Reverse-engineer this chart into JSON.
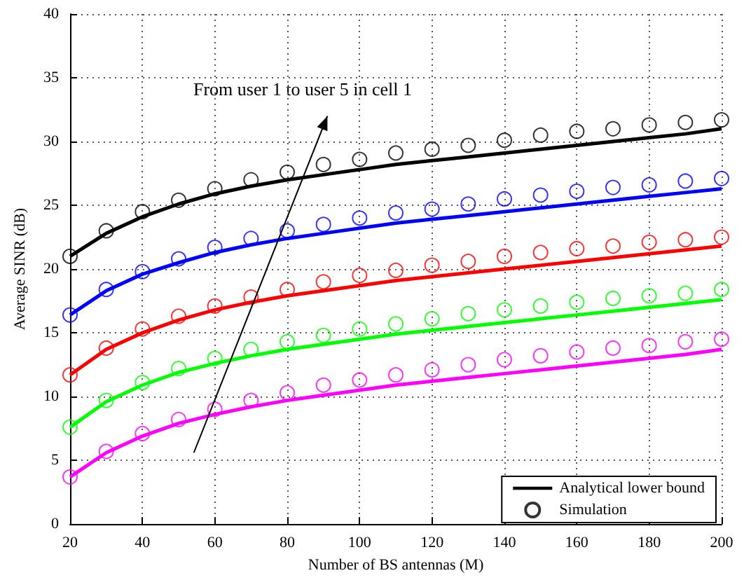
{
  "chart_data": {
    "type": "line",
    "xlabel": "Number of BS antennas (M)",
    "ylabel": "Average SINR (dB)",
    "x": [
      20,
      30,
      40,
      50,
      60,
      70,
      80,
      90,
      100,
      110,
      120,
      130,
      140,
      150,
      160,
      170,
      180,
      190,
      200
    ],
    "series": [
      {
        "name": "Analytical lower bound",
        "color": "#000000",
        "marker": "none",
        "values": [
          21.0,
          22.8,
          24.1,
          25.1,
          25.9,
          26.5,
          27.0,
          27.4,
          27.8,
          28.2,
          28.5,
          28.8,
          29.1,
          29.4,
          29.7,
          30.0,
          30.3,
          30.6,
          31.0
        ]
      },
      {
        "color": "#0000ff",
        "marker": "none",
        "values": [
          16.4,
          18.3,
          19.6,
          20.5,
          21.3,
          21.9,
          22.4,
          22.8,
          23.2,
          23.6,
          23.9,
          24.2,
          24.5,
          24.8,
          25.1,
          25.4,
          25.7,
          26.0,
          26.3
        ]
      },
      {
        "color": "#ff0000",
        "marker": "none",
        "values": [
          11.7,
          13.7,
          15.0,
          16.0,
          16.8,
          17.4,
          17.9,
          18.3,
          18.7,
          19.1,
          19.4,
          19.7,
          20.0,
          20.3,
          20.6,
          20.9,
          21.2,
          21.5,
          21.8
        ]
      },
      {
        "color": "#00ff00",
        "marker": "none",
        "values": [
          7.6,
          9.6,
          10.9,
          11.9,
          12.6,
          13.2,
          13.7,
          14.1,
          14.5,
          14.9,
          15.2,
          15.5,
          15.8,
          16.1,
          16.4,
          16.7,
          17.0,
          17.3,
          17.6
        ]
      },
      {
        "color": "#ff00ff",
        "marker": "none",
        "values": [
          3.7,
          5.6,
          6.9,
          7.9,
          8.6,
          9.2,
          9.7,
          10.1,
          10.5,
          10.9,
          11.2,
          11.5,
          11.8,
          12.1,
          12.4,
          12.7,
          13.0,
          13.3,
          13.7
        ]
      },
      {
        "type": "scatter",
        "name": "Simulation",
        "color": "#000000",
        "marker": "circle",
        "values": [
          21.0,
          23.0,
          24.5,
          25.4,
          26.3,
          27.0,
          27.6,
          28.2,
          28.6,
          29.1,
          29.4,
          29.7,
          30.1,
          30.5,
          30.8,
          31.0,
          31.3,
          31.5,
          31.7
        ]
      },
      {
        "type": "scatter",
        "color": "#0000ff",
        "marker": "circle",
        "values": [
          16.4,
          18.4,
          19.8,
          20.8,
          21.7,
          22.4,
          23.0,
          23.5,
          24.0,
          24.4,
          24.7,
          25.1,
          25.5,
          25.8,
          26.1,
          26.4,
          26.6,
          26.9,
          27.1
        ]
      },
      {
        "type": "scatter",
        "color": "#ff0000",
        "marker": "circle",
        "values": [
          11.7,
          13.8,
          15.3,
          16.3,
          17.1,
          17.8,
          18.4,
          19.0,
          19.5,
          19.9,
          20.3,
          20.6,
          21.0,
          21.3,
          21.6,
          21.8,
          22.1,
          22.3,
          22.5
        ]
      },
      {
        "type": "scatter",
        "color": "#00ff00",
        "marker": "circle",
        "values": [
          7.6,
          9.7,
          11.1,
          12.2,
          13.0,
          13.7,
          14.3,
          14.8,
          15.3,
          15.7,
          16.1,
          16.5,
          16.8,
          17.1,
          17.4,
          17.7,
          17.9,
          18.1,
          18.4
        ]
      },
      {
        "type": "scatter",
        "color": "#ff00ff",
        "marker": "circle",
        "values": [
          3.7,
          5.7,
          7.1,
          8.2,
          9.0,
          9.7,
          10.3,
          10.9,
          11.3,
          11.7,
          12.1,
          12.5,
          12.9,
          13.2,
          13.5,
          13.8,
          14.0,
          14.3,
          14.5
        ]
      }
    ],
    "xlim": [
      20,
      200
    ],
    "xticks": [
      20,
      40,
      60,
      80,
      100,
      120,
      140,
      160,
      180,
      200
    ],
    "ylim": [
      0,
      40
    ],
    "yticks": [
      0,
      5,
      10,
      15,
      20,
      25,
      30,
      35,
      40
    ],
    "grid": true,
    "legend": "bottom right",
    "line_style": "solid",
    "annotations": [
      "From user 1 to user 5 in cell 1"
    ]
  }
}
